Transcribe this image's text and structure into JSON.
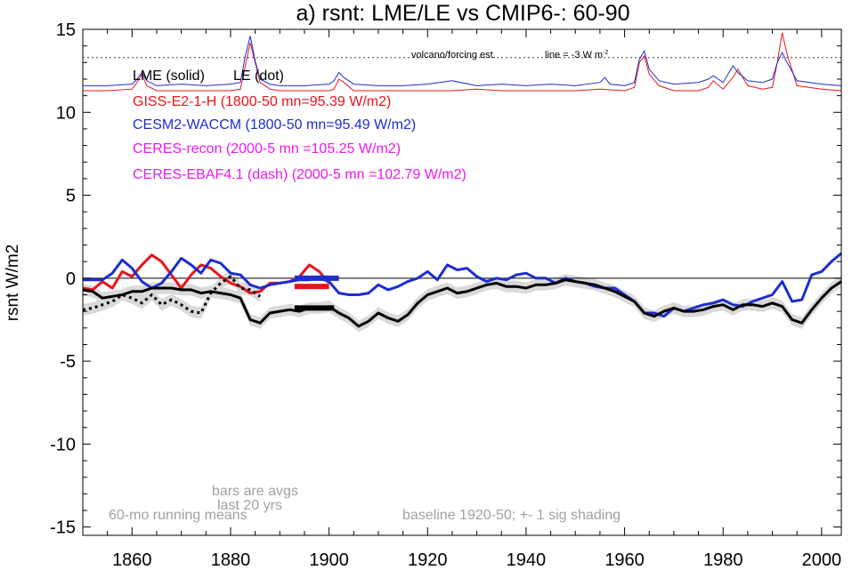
{
  "chart_data": {
    "type": "line",
    "title": "a) rsnt: LME/LE vs CMIP6-: 60-90",
    "ylabel": "rsnt W/m2",
    "xlabel": "",
    "xlim": [
      1850,
      2004
    ],
    "ylim": [
      -15.5,
      15
    ],
    "x_ticks": [
      1860,
      1880,
      1900,
      1920,
      1940,
      1960,
      1980,
      2000
    ],
    "x_tick_labels": [
      "1860",
      "1880",
      "1900",
      "1920",
      "1940",
      "1960",
      "1980",
      "2000"
    ],
    "y_ticks": [
      -15,
      -10,
      -5,
      0,
      5,
      10,
      15
    ],
    "y_tick_labels": [
      "-15",
      "-10",
      "-5",
      "0",
      "5",
      "10",
      "15"
    ],
    "legend": {
      "header_lme": "LME (solid)",
      "header_le": "LE (dot)",
      "entries": [
        {
          "label": "GISS-E2-1-H (1800-50 mn=95.39 W/m2)",
          "color": "#e8141c"
        },
        {
          "label": "CESM2-WACCM (1800-50 mn=95.49 W/m2)",
          "color": "#1c2ecc"
        },
        {
          "label": "CERES-recon (2000-5 mn =105.25 W/m2)",
          "color": "#ee18ee"
        },
        {
          "label": "CERES-EBAF4.1 (dash) (2000-5 mn =102.79 W/m2)",
          "color": "#ee18ee"
        }
      ]
    },
    "annotations": {
      "volcano": "volcano/forcing est.",
      "line_note": "line = -3 W m",
      "line_note_sup": "-2",
      "bars_note_1": "bars are avgs",
      "bars_note_2": "last 20 yrs",
      "running_means": "60-mo running means",
      "baseline": "baseline 1920-50; +- 1 sig shading"
    },
    "reference_lines": {
      "volcano_dotted_y": 13.3,
      "zero_y": 0
    },
    "series": [
      {
        "name": "GISS-E2-1-H",
        "color": "#e8141c",
        "x": [
          1850,
          1852,
          1854,
          1856,
          1858,
          1860,
          1862,
          1864,
          1866,
          1868,
          1870,
          1872,
          1874,
          1876,
          1878,
          1880,
          1882,
          1884,
          1886,
          1888,
          1890,
          1892,
          1894,
          1896,
          1898,
          1900
        ],
        "y": [
          -0.6,
          -0.7,
          -0.2,
          -0.6,
          0.4,
          0.1,
          0.8,
          1.4,
          1.0,
          0.2,
          -0.6,
          0.2,
          0.8,
          0.6,
          0.1,
          -0.3,
          -0.5,
          -0.9,
          -0.8,
          -0.3,
          -0.3,
          -0.2,
          0.1,
          0.8,
          0.4,
          -0.3
        ]
      },
      {
        "name": "CESM2-WACCM",
        "color": "#1c2ecc",
        "x": [
          1850,
          1852,
          1854,
          1856,
          1858,
          1860,
          1862,
          1864,
          1866,
          1868,
          1870,
          1872,
          1874,
          1876,
          1878,
          1880,
          1882,
          1884,
          1886,
          1888,
          1890,
          1892,
          1894,
          1896,
          1898,
          1900,
          1902,
          1904,
          1906,
          1908,
          1910,
          1912,
          1914,
          1916,
          1918,
          1920,
          1922,
          1924,
          1926,
          1928,
          1930,
          1932,
          1934,
          1936,
          1938,
          1940,
          1942,
          1944,
          1946,
          1948,
          1950,
          1952,
          1954,
          1956,
          1958,
          1960,
          1962,
          1964,
          1966,
          1968,
          1970,
          1972,
          1974,
          1976,
          1978,
          1980,
          1982,
          1984,
          1986,
          1988,
          1990,
          1992,
          1994,
          1996,
          1998,
          2000,
          2002,
          2004
        ],
        "y": [
          -0.1,
          -0.1,
          -0.1,
          0.3,
          1.1,
          0.6,
          -0.2,
          -0.6,
          -0.3,
          0.4,
          1.2,
          0.8,
          0.3,
          1.1,
          0.9,
          0.3,
          0.2,
          -0.4,
          -0.6,
          -0.4,
          -0.3,
          -0.2,
          -0.1,
          -0.1,
          0.0,
          -0.2,
          -0.9,
          -1.0,
          -1.0,
          -0.9,
          -0.4,
          -0.7,
          -0.5,
          -0.2,
          0.0,
          0.4,
          -0.1,
          0.8,
          0.5,
          0.6,
          0.1,
          -0.2,
          0.0,
          -0.1,
          0.2,
          0.3,
          0.0,
          0.0,
          -0.3,
          0.0,
          -0.2,
          -0.3,
          -0.5,
          -0.6,
          -0.6,
          -1.0,
          -1.4,
          -2.1,
          -2.1,
          -2.3,
          -1.8,
          -2.0,
          -1.8,
          -1.6,
          -1.5,
          -1.3,
          -1.6,
          -1.7,
          -1.4,
          -1.2,
          -1.0,
          -0.2,
          -1.4,
          -1.3,
          0.2,
          0.4,
          1.0,
          1.5
        ]
      },
      {
        "name": "LME",
        "color": "#000000",
        "x": [
          1850,
          1852,
          1854,
          1856,
          1858,
          1860,
          1862,
          1864,
          1866,
          1868,
          1870,
          1872,
          1874,
          1876,
          1878,
          1880,
          1882,
          1884,
          1886,
          1888,
          1890,
          1892,
          1894,
          1896,
          1898,
          1900,
          1902,
          1904,
          1906,
          1908,
          1910,
          1912,
          1914,
          1916,
          1918,
          1920,
          1922,
          1924,
          1926,
          1928,
          1930,
          1932,
          1934,
          1936,
          1938,
          1940,
          1942,
          1944,
          1946,
          1948,
          1950,
          1952,
          1954,
          1956,
          1958,
          1960,
          1962,
          1964,
          1966,
          1968,
          1970,
          1972,
          1974,
          1976,
          1978,
          1980,
          1982,
          1984,
          1986,
          1988,
          1990,
          1992,
          1994,
          1996,
          1998,
          2000,
          2002,
          2004
        ],
        "y": [
          -0.7,
          -0.8,
          -1.2,
          -1.1,
          -1.0,
          -0.8,
          -0.8,
          -0.6,
          -0.6,
          -0.6,
          -0.7,
          -0.7,
          -0.9,
          -0.8,
          -0.9,
          -1.0,
          -1.2,
          -2.5,
          -2.7,
          -2.1,
          -2.0,
          -1.9,
          -2.0,
          -1.8,
          -1.8,
          -1.7,
          -2.1,
          -2.4,
          -2.9,
          -2.6,
          -2.1,
          -2.4,
          -2.6,
          -2.2,
          -1.5,
          -1.0,
          -0.8,
          -0.6,
          -0.9,
          -0.8,
          -0.6,
          -0.4,
          -0.3,
          -0.5,
          -0.5,
          -0.6,
          -0.4,
          -0.4,
          -0.3,
          -0.1,
          -0.2,
          -0.3,
          -0.4,
          -0.6,
          -0.8,
          -1.1,
          -1.4,
          -2.1,
          -2.3,
          -2.0,
          -1.8,
          -2.0,
          -2.0,
          -1.9,
          -1.7,
          -1.6,
          -1.9,
          -1.6,
          -1.6,
          -1.7,
          -1.5,
          -1.7,
          -2.5,
          -2.7,
          -1.9,
          -1.2,
          -0.6,
          -0.2
        ]
      },
      {
        "name": "LE",
        "color": "#000000",
        "dashed": true,
        "x": [
          1850,
          1852,
          1854,
          1856,
          1858,
          1860,
          1862,
          1864,
          1866,
          1868,
          1870,
          1872,
          1874,
          1876,
          1878,
          1880,
          1882,
          1884,
          1886
        ],
        "y": [
          -1.9,
          -1.8,
          -1.6,
          -1.4,
          -1.0,
          -1.2,
          -1.5,
          -1.0,
          -1.6,
          -1.3,
          -1.6,
          -2.0,
          -2.1,
          -0.9,
          -0.3,
          0.1,
          -0.6,
          -0.7,
          -1.1
        ]
      }
    ],
    "forcing_series": [
      {
        "name": "GISS-E2-1-H",
        "color": "#e8141c",
        "x": [
          1850,
          1855,
          1860,
          1861,
          1862,
          1863,
          1865,
          1870,
          1875,
          1880,
          1882,
          1883,
          1884,
          1885,
          1886,
          1888,
          1890,
          1895,
          1900,
          1901,
          1902,
          1903,
          1905,
          1910,
          1915,
          1920,
          1925,
          1930,
          1935,
          1940,
          1945,
          1950,
          1955,
          1960,
          1962,
          1963,
          1964,
          1965,
          1967,
          1970,
          1975,
          1977,
          1978,
          1980,
          1982,
          1983,
          1985,
          1988,
          1990,
          1991,
          1992,
          1993,
          1995,
          2000,
          2004
        ],
        "y": [
          11.3,
          11.3,
          11.4,
          11.8,
          12.3,
          11.6,
          11.3,
          11.3,
          11.3,
          11.3,
          11.4,
          12.8,
          14.2,
          13.0,
          11.8,
          11.4,
          11.3,
          11.3,
          11.3,
          11.4,
          12.0,
          11.8,
          11.3,
          11.3,
          11.3,
          11.3,
          11.3,
          11.4,
          11.3,
          11.3,
          11.3,
          11.3,
          11.4,
          11.3,
          11.5,
          13.0,
          13.4,
          12.3,
          11.6,
          11.3,
          11.3,
          11.5,
          11.9,
          11.4,
          12.1,
          12.6,
          11.6,
          11.4,
          11.5,
          13.0,
          14.8,
          13.5,
          11.6,
          11.4,
          11.3
        ]
      },
      {
        "name": "CESM2-WACCM",
        "color": "#1c2ecc",
        "x": [
          1850,
          1855,
          1860,
          1861,
          1862,
          1863,
          1865,
          1870,
          1875,
          1880,
          1882,
          1883,
          1884,
          1885,
          1886,
          1888,
          1890,
          1895,
          1900,
          1901,
          1902,
          1903,
          1905,
          1910,
          1915,
          1920,
          1925,
          1930,
          1935,
          1940,
          1945,
          1950,
          1955,
          1956,
          1957,
          1960,
          1962,
          1963,
          1964,
          1965,
          1967,
          1970,
          1975,
          1977,
          1978,
          1980,
          1982,
          1983,
          1985,
          1988,
          1990,
          1991,
          1992,
          1993,
          1995,
          2000,
          2004
        ],
        "y": [
          11.6,
          11.6,
          11.7,
          12.0,
          12.4,
          11.9,
          11.6,
          11.7,
          11.6,
          11.7,
          11.8,
          13.4,
          14.6,
          13.1,
          12.0,
          11.7,
          11.6,
          11.6,
          11.7,
          11.9,
          12.4,
          12.1,
          11.7,
          11.6,
          11.6,
          11.7,
          11.9,
          11.6,
          11.7,
          11.6,
          11.7,
          11.6,
          11.8,
          12.1,
          11.7,
          11.6,
          11.8,
          13.2,
          13.7,
          12.6,
          11.9,
          11.7,
          11.8,
          12.0,
          12.2,
          11.8,
          12.8,
          12.4,
          11.9,
          11.8,
          12.0,
          13.0,
          13.6,
          13.0,
          11.9,
          11.7,
          11.6
        ]
      }
    ],
    "bars": [
      {
        "color": "#1c2ecc",
        "x": [
          1893,
          1902
        ],
        "y": 0.0
      },
      {
        "color": "#e8141c",
        "x": [
          1893,
          1900
        ],
        "y": -0.5
      },
      {
        "color": "#000000",
        "x": [
          1893,
          1901
        ],
        "y": -1.8
      }
    ]
  }
}
